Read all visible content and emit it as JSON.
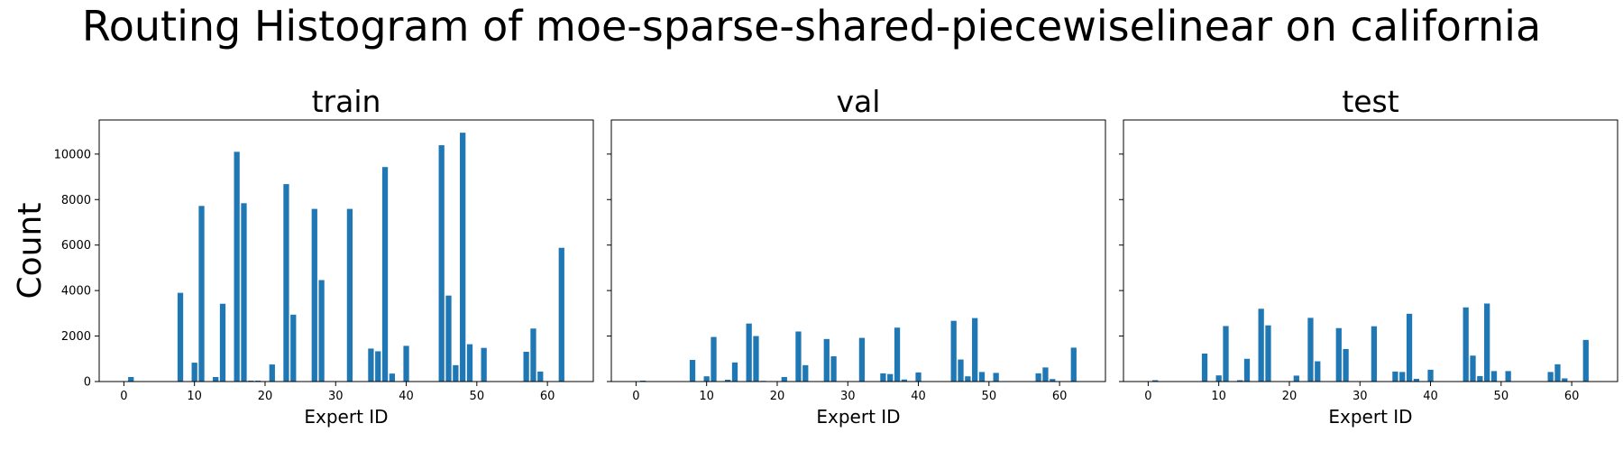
{
  "figure": {
    "title": "Routing Histogram of moe-sparse-shared-piecewiselinear on california"
  },
  "colors": {
    "bar": "#1f77b4",
    "axis": "#000000",
    "background": "#ffffff"
  },
  "chart_data": [
    {
      "type": "bar",
      "title": "train",
      "xlabel": "Expert ID",
      "ylabel": "Count",
      "xlim": [
        -3.5,
        66.5
      ],
      "ylim": [
        0,
        11500
      ],
      "xticks": [
        0,
        10,
        20,
        30,
        40,
        50,
        60
      ],
      "yticks": [
        0,
        2000,
        4000,
        6000,
        8000,
        10000
      ],
      "grid": false,
      "x": [
        1,
        8,
        10,
        11,
        13,
        14,
        16,
        17,
        18,
        19,
        21,
        23,
        24,
        27,
        28,
        32,
        35,
        36,
        37,
        38,
        40,
        45,
        46,
        47,
        48,
        49,
        51,
        57,
        58,
        59,
        62
      ],
      "values": [
        200,
        3900,
        830,
        7720,
        200,
        3420,
        10100,
        7840,
        40,
        40,
        750,
        8680,
        2940,
        7590,
        4460,
        7590,
        1450,
        1330,
        9430,
        350,
        1570,
        10390,
        3780,
        720,
        10940,
        1640,
        1480,
        1310,
        2330,
        440,
        5880
      ]
    },
    {
      "type": "bar",
      "title": "val",
      "xlabel": "Expert ID",
      "ylabel": "",
      "xlim": [
        -3.5,
        66.5
      ],
      "ylim": [
        0,
        11500
      ],
      "xticks": [
        0,
        10,
        20,
        30,
        40,
        50,
        60
      ],
      "yticks": [
        0,
        2000,
        4000,
        6000,
        8000,
        10000
      ],
      "grid": false,
      "x": [
        1,
        8,
        10,
        11,
        13,
        14,
        16,
        17,
        18,
        21,
        23,
        24,
        27,
        28,
        32,
        35,
        36,
        37,
        38,
        40,
        45,
        46,
        47,
        48,
        49,
        51,
        57,
        58,
        59,
        62
      ],
      "values": [
        40,
        950,
        230,
        1960,
        80,
        840,
        2550,
        2000,
        30,
        200,
        2200,
        720,
        1870,
        1110,
        1920,
        360,
        330,
        2370,
        90,
        400,
        2670,
        970,
        230,
        2790,
        420,
        380,
        360,
        620,
        110,
        1490
      ]
    },
    {
      "type": "bar",
      "title": "test",
      "xlabel": "Expert ID",
      "ylabel": "",
      "xlim": [
        -3.5,
        66.5
      ],
      "ylim": [
        0,
        11500
      ],
      "xticks": [
        0,
        10,
        20,
        30,
        40,
        50,
        60
      ],
      "yticks": [
        0,
        2000,
        4000,
        6000,
        8000,
        10000
      ],
      "grid": false,
      "x": [
        1,
        8,
        10,
        11,
        13,
        14,
        16,
        17,
        18,
        19,
        21,
        23,
        24,
        27,
        28,
        32,
        35,
        36,
        37,
        38,
        40,
        45,
        46,
        47,
        48,
        49,
        51,
        57,
        58,
        59,
        62
      ],
      "values": [
        60,
        1230,
        270,
        2440,
        60,
        1000,
        3200,
        2470,
        20,
        20,
        260,
        2800,
        890,
        2350,
        1430,
        2430,
        440,
        420,
        2980,
        120,
        520,
        3260,
        1140,
        240,
        3430,
        460,
        460,
        420,
        760,
        140,
        1830
      ]
    }
  ]
}
